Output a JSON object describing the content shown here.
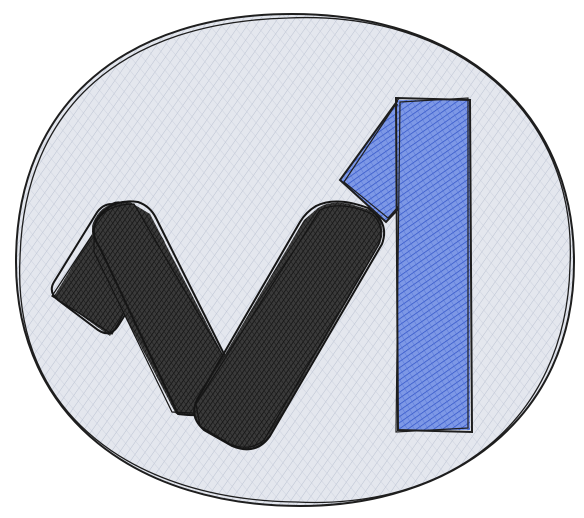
{
  "logo": {
    "description_icon": "sketch-checkmark-one-logo-icon",
    "colors": {
      "background": "#ffffff",
      "circle_fill": "#dfe2ea",
      "circle_hatch": "#b9c0d0",
      "outline": "#1e1e1e",
      "dark_shape_fill": "#2b2b2b",
      "blue_fill": "#5b7ee0",
      "blue_hatch": "#3557c8"
    }
  }
}
